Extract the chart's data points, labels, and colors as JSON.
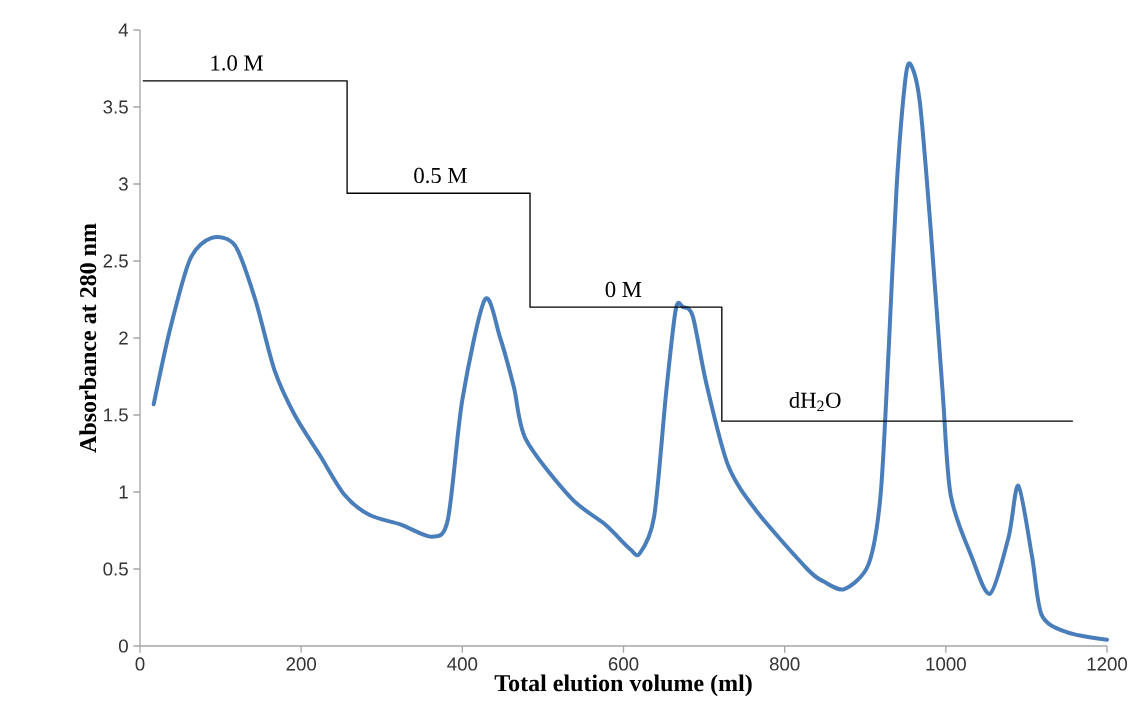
{
  "chart_data": {
    "type": "line",
    "xlabel": "Total elution volume (ml)",
    "ylabel": "Absorbance at 280 nm",
    "xlim": [
      0,
      1200
    ],
    "ylim": [
      0,
      4
    ],
    "xticks": [
      0,
      200,
      400,
      600,
      800,
      1000,
      1200
    ],
    "yticks": [
      0,
      0.5,
      1,
      1.5,
      2,
      2.5,
      3,
      3.5,
      4
    ],
    "grid": false,
    "series": [
      {
        "color": "#4a7ebb",
        "x": [
          17,
          37,
          62,
          89,
          118,
          143,
          167,
          192,
          223,
          254,
          285,
          323,
          362,
          382,
          400,
          428,
          447,
          464,
          479,
          535,
          577,
          608,
          620,
          638,
          653,
          665,
          674,
          686,
          703,
          730,
          766,
          828,
          848,
          874,
          904,
          919,
          929,
          939,
          950,
          957,
          968,
          981,
          996,
          1006,
          1032,
          1055,
          1078,
          1090,
          1107,
          1119,
          1150,
          1200
        ],
        "values": [
          1.57,
          2.05,
          2.51,
          2.65,
          2.6,
          2.25,
          1.79,
          1.5,
          1.24,
          0.98,
          0.85,
          0.79,
          0.71,
          0.82,
          1.6,
          2.25,
          2.0,
          1.68,
          1.34,
          0.96,
          0.79,
          0.63,
          0.6,
          0.84,
          1.65,
          2.19,
          2.2,
          2.14,
          1.7,
          1.17,
          0.87,
          0.5,
          0.42,
          0.37,
          0.53,
          0.98,
          1.92,
          2.99,
          3.69,
          3.77,
          3.52,
          2.72,
          1.65,
          0.98,
          0.58,
          0.34,
          0.71,
          1.04,
          0.58,
          0.2,
          0.09,
          0.04
        ]
      },
      {
        "type": "step",
        "color": "#000000",
        "x": [
          4,
          257,
          484,
          722,
          1157
        ],
        "values": [
          3.67,
          2.94,
          2.2,
          1.46,
          1.46
        ]
      }
    ],
    "annotations": [
      "1.0 M",
      "0.5 M",
      "0 M",
      "dH$_{2}$O"
    ]
  }
}
